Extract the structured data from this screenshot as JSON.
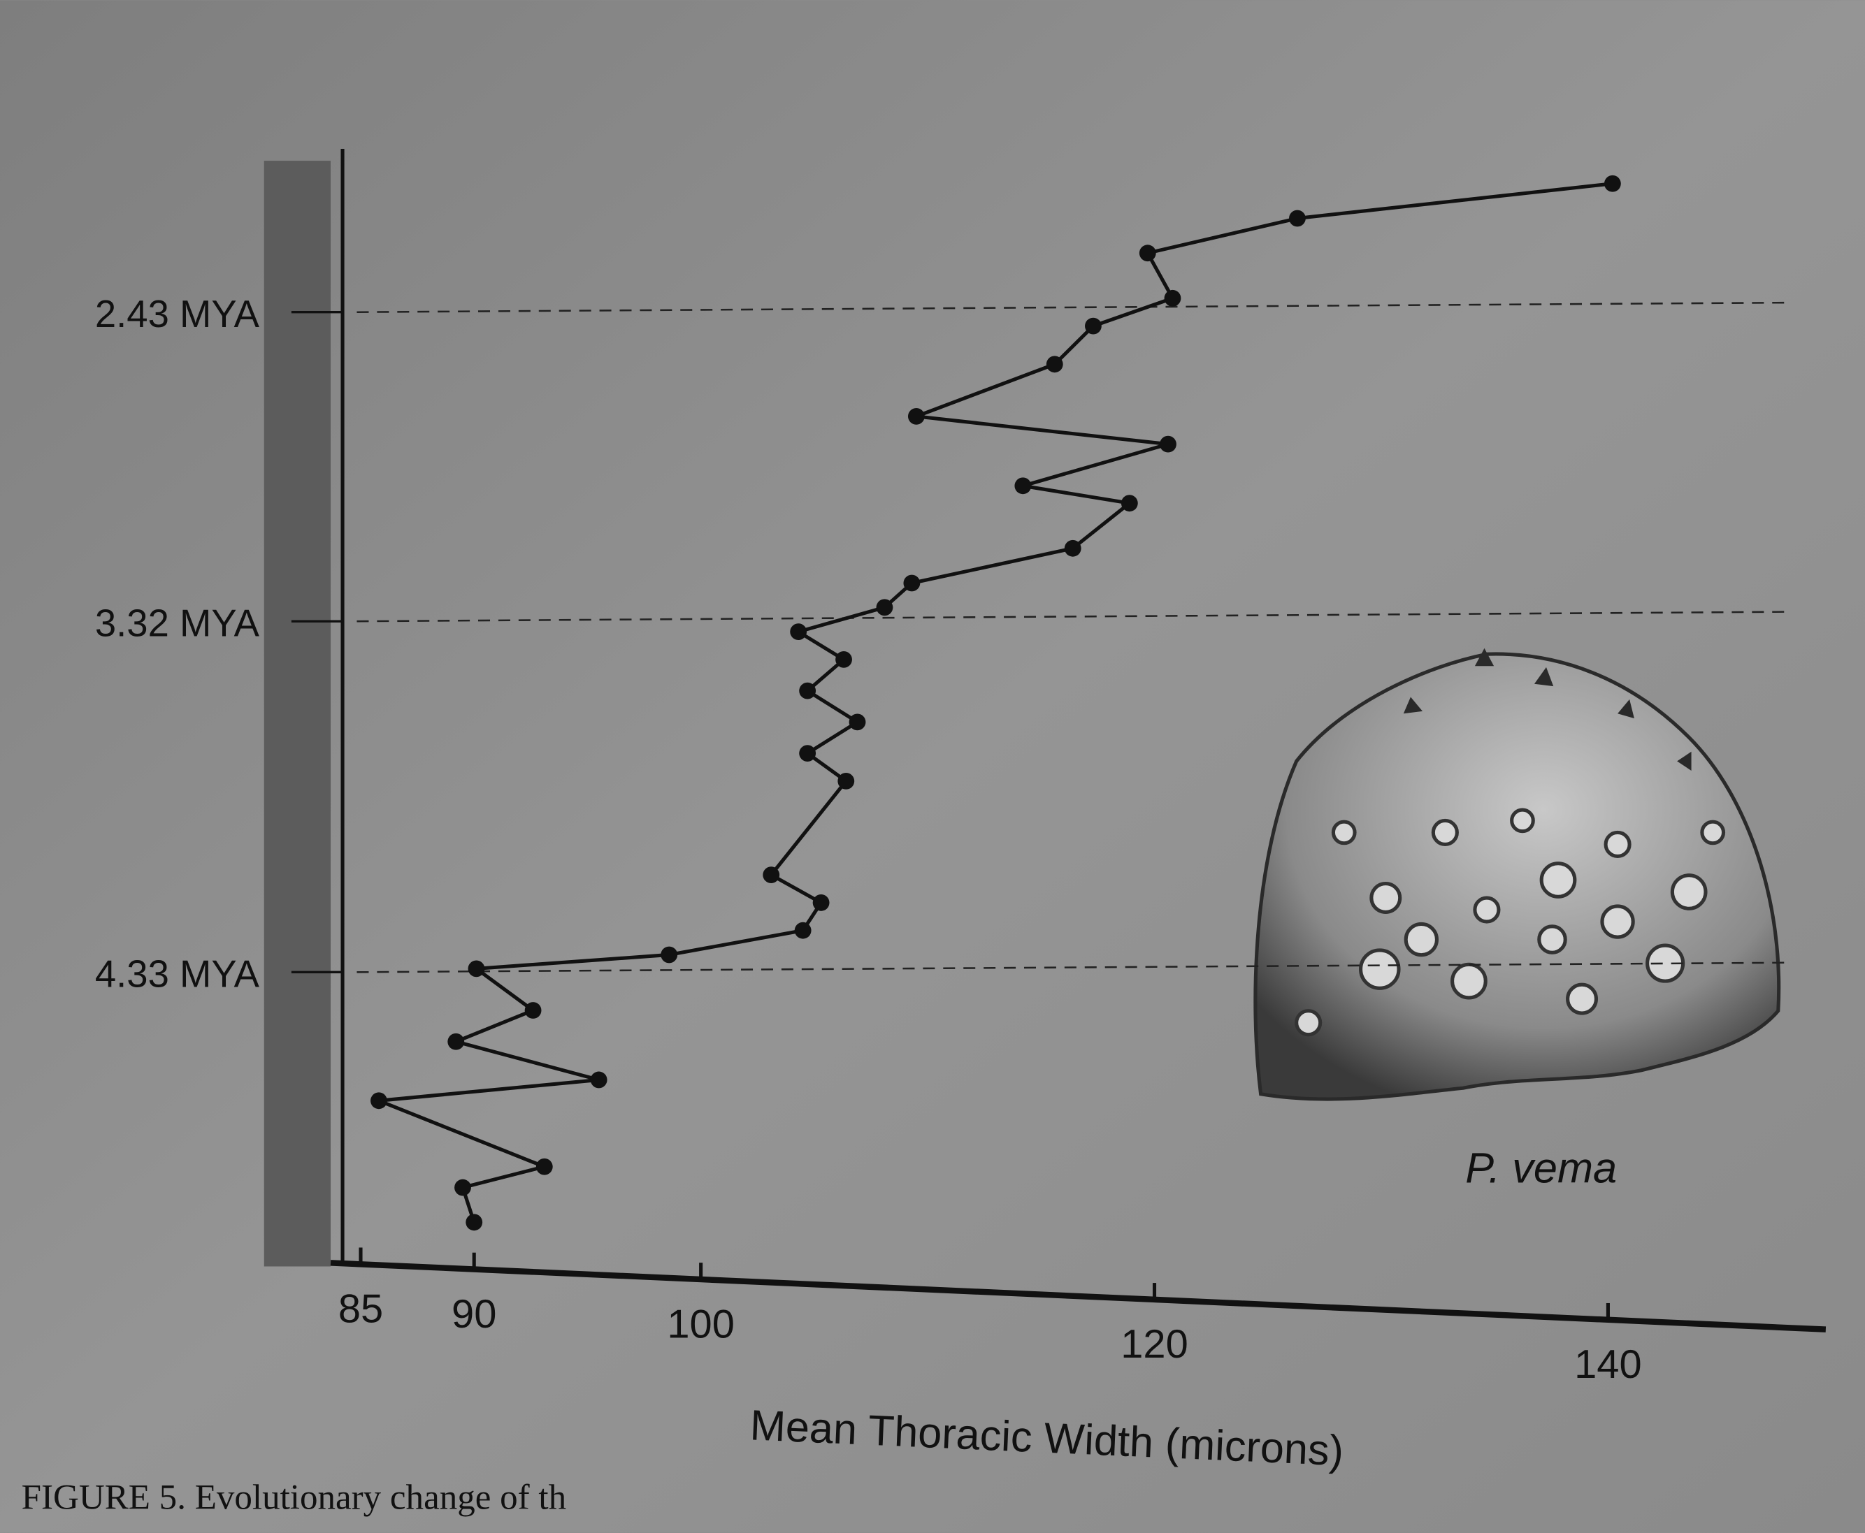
{
  "chart_data": {
    "type": "line",
    "xlabel": "Mean Thoracic Width (microns)",
    "x": [
      140.2,
      126.3,
      119.7,
      120.8,
      117.3,
      115.6,
      109.5,
      120.6,
      114.2,
      118.9,
      116.4,
      109.3,
      108.1,
      104.3,
      106.3,
      104.7,
      106.9,
      104.7,
      106.4,
      103.1,
      105.3,
      104.5,
      98.6,
      90.1,
      92.6,
      89.2,
      95.5,
      85.8,
      93.1,
      89.5,
      90.0
    ],
    "values": [
      2.06,
      2.16,
      2.26,
      2.39,
      2.47,
      2.58,
      2.73,
      2.81,
      2.93,
      2.98,
      3.11,
      3.21,
      3.28,
      3.35,
      3.43,
      3.52,
      3.61,
      3.7,
      3.78,
      4.05,
      4.13,
      4.21,
      4.28,
      4.32,
      4.44,
      4.53,
      4.64,
      4.7,
      4.89,
      4.95,
      5.05
    ],
    "color": "#111111",
    "xlim": [
      84.2,
      149.6
    ],
    "xticks": [
      85,
      90,
      100,
      120,
      140
    ],
    "ylim": [
      5.16,
      1.96
    ],
    "yticks": [
      {
        "value": 2.43,
        "label": "2.43 MYA"
      },
      {
        "value": 3.32,
        "label": "3.32 MYA"
      },
      {
        "value": 4.33,
        "label": "4.33 MYA"
      }
    ],
    "annotation": "P. vema",
    "caption": "FIGURE 5. Evolutionary change of th"
  }
}
